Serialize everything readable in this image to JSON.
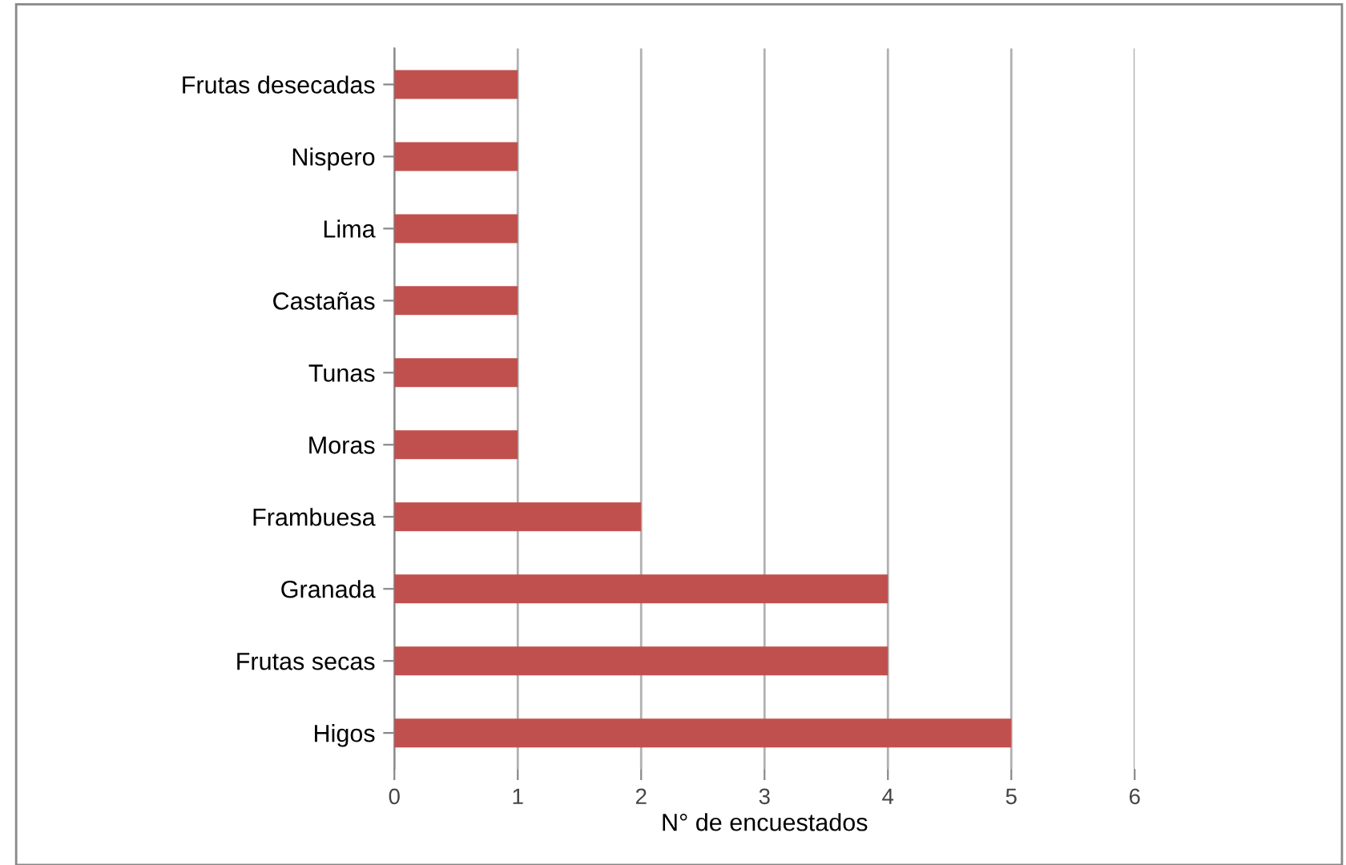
{
  "chart_data": {
    "type": "bar",
    "orientation": "horizontal",
    "xlabel": "N° de encuestados",
    "categories": [
      "Frutas desecadas",
      "Nispero",
      "Lima",
      "Castañas",
      "Tunas",
      "Moras",
      "Frambuesa",
      "Granada",
      "Frutas secas",
      "Higos"
    ],
    "values": [
      1,
      1,
      1,
      1,
      1,
      1,
      2,
      4,
      4,
      5
    ],
    "color": "#c0504d",
    "xlim": [
      0,
      6
    ],
    "xticks": [
      0,
      1,
      2,
      3,
      4,
      5,
      6
    ],
    "grid": "x"
  }
}
